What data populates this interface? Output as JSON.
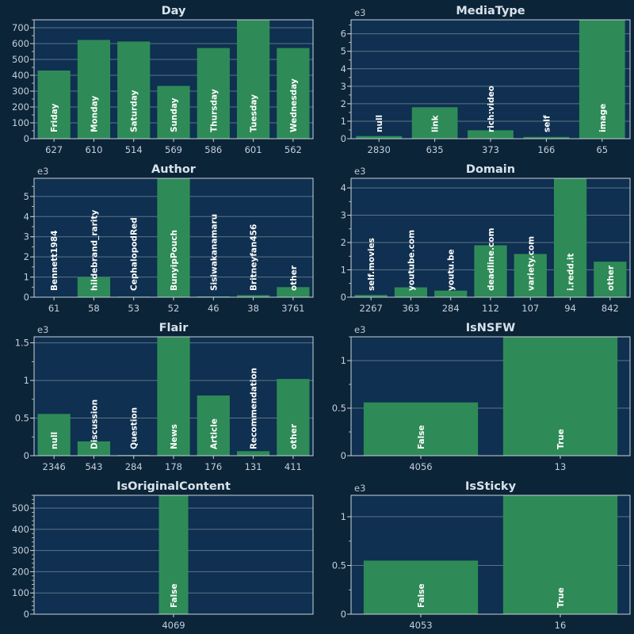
{
  "theme": {
    "page_bg": "#0c2438",
    "plot_bg": "#0f3050",
    "bar": "#2e8b57",
    "grid": "#5c7388",
    "axis": "#c9d4dd",
    "text": "#d8e2ea"
  },
  "chart_data": [
    {
      "type": "bar",
      "title": "Day",
      "exponent_label": "",
      "ylim": [
        0,
        750
      ],
      "yticks": [
        {
          "value": 0,
          "label": "0"
        },
        {
          "value": 100,
          "label": "100"
        },
        {
          "value": 200,
          "label": "200"
        },
        {
          "value": 300,
          "label": "300"
        },
        {
          "value": 400,
          "label": "400"
        },
        {
          "value": 500,
          "label": "500"
        },
        {
          "value": 600,
          "label": "600"
        },
        {
          "value": 700,
          "label": "700"
        }
      ],
      "minor_step": 50,
      "bar_labels": [
        "Friday",
        "Monday",
        "Saturday",
        "Sunday",
        "Thursday",
        "Tuesday",
        "Wednesday"
      ],
      "tick_labels": [
        "627",
        "610",
        "514",
        "569",
        "586",
        "601",
        "562"
      ],
      "values": [
        430,
        623,
        613,
        333,
        572,
        750,
        572
      ]
    },
    {
      "type": "bar",
      "title": "MediaType",
      "exponent_label": "e3",
      "ylim": [
        0,
        6800
      ],
      "yticks": [
        {
          "value": 0,
          "label": "0"
        },
        {
          "value": 1000,
          "label": "1"
        },
        {
          "value": 2000,
          "label": "2"
        },
        {
          "value": 3000,
          "label": "3"
        },
        {
          "value": 4000,
          "label": "4"
        },
        {
          "value": 5000,
          "label": "5"
        },
        {
          "value": 6000,
          "label": "6"
        }
      ],
      "minor_step": 500,
      "bar_labels": [
        "null",
        "link",
        "rich:video",
        "self",
        "image"
      ],
      "tick_labels": [
        "2830",
        "635",
        "373",
        "166",
        "65"
      ],
      "values": [
        150,
        1800,
        480,
        100,
        6800
      ]
    },
    {
      "type": "bar",
      "title": "Author",
      "exponent_label": "e3",
      "ylim": [
        0,
        5900
      ],
      "yticks": [
        {
          "value": 0,
          "label": "0"
        },
        {
          "value": 1000,
          "label": "1"
        },
        {
          "value": 2000,
          "label": "2"
        },
        {
          "value": 3000,
          "label": "3"
        },
        {
          "value": 4000,
          "label": "4"
        },
        {
          "value": 5000,
          "label": "5"
        }
      ],
      "minor_step": 500,
      "bar_labels": [
        "Bennett1984",
        "hildebrand_rarity",
        "CephalopodRed",
        "BunyipPouch",
        "Sisiwakanamaru",
        "Britneyfan456",
        "other"
      ],
      "tick_labels": [
        "61",
        "58",
        "53",
        "52",
        "46",
        "38",
        "3761"
      ],
      "values": [
        20,
        1000,
        30,
        5900,
        40,
        100,
        500
      ]
    },
    {
      "type": "bar",
      "title": "Domain",
      "exponent_label": "e3",
      "ylim": [
        0,
        4350
      ],
      "yticks": [
        {
          "value": 0,
          "label": "0"
        },
        {
          "value": 1000,
          "label": "1"
        },
        {
          "value": 2000,
          "label": "2"
        },
        {
          "value": 3000,
          "label": "3"
        },
        {
          "value": 4000,
          "label": "4"
        }
      ],
      "minor_step": 500,
      "bar_labels": [
        "self.movies",
        "youtube.com",
        "youtu.be",
        "deadline.com",
        "variety.com",
        "i.redd.it",
        "other"
      ],
      "tick_labels": [
        "2267",
        "363",
        "284",
        "112",
        "107",
        "94",
        "842"
      ],
      "values": [
        80,
        360,
        240,
        1900,
        1580,
        4350,
        1300
      ]
    },
    {
      "type": "bar",
      "title": "Flair",
      "exponent_label": "e3",
      "ylim": [
        0,
        1580
      ],
      "yticks": [
        {
          "value": 0,
          "label": "0"
        },
        {
          "value": 500,
          "label": "0.5"
        },
        {
          "value": 1000,
          "label": "1"
        },
        {
          "value": 1500,
          "label": "1.5"
        }
      ],
      "minor_step": 250,
      "bar_labels": [
        "null",
        "Discussion",
        "Question",
        "News",
        "Article",
        "Recommendation",
        "other"
      ],
      "tick_labels": [
        "2346",
        "543",
        "284",
        "178",
        "176",
        "131",
        "411"
      ],
      "values": [
        555,
        190,
        10,
        1580,
        800,
        60,
        1020
      ]
    },
    {
      "type": "bar",
      "title": "IsNSFW",
      "exponent_label": "e3",
      "ylim": [
        0,
        1250
      ],
      "yticks": [
        {
          "value": 0,
          "label": "0"
        },
        {
          "value": 500,
          "label": "0.5"
        },
        {
          "value": 1000,
          "label": "1"
        }
      ],
      "minor_step": 250,
      "bar_labels": [
        "False",
        "True"
      ],
      "tick_labels": [
        "4056",
        "13"
      ],
      "values": [
        560,
        1250
      ]
    },
    {
      "type": "bar",
      "title": "IsOriginalContent",
      "exponent_label": "",
      "ylim": [
        0,
        560
      ],
      "yticks": [
        {
          "value": 0,
          "label": "0"
        },
        {
          "value": 100,
          "label": "100"
        },
        {
          "value": 200,
          "label": "200"
        },
        {
          "value": 300,
          "label": "300"
        },
        {
          "value": 400,
          "label": "400"
        },
        {
          "value": 500,
          "label": "500"
        }
      ],
      "minor_step": 20,
      "bar_labels": [
        "False"
      ],
      "tick_labels": [
        "4069"
      ],
      "values": [
        560
      ]
    },
    {
      "type": "bar",
      "title": "IsSticky",
      "exponent_label": "e3",
      "ylim": [
        0,
        1220
      ],
      "yticks": [
        {
          "value": 0,
          "label": "0"
        },
        {
          "value": 500,
          "label": "0.5"
        },
        {
          "value": 1000,
          "label": "1"
        }
      ],
      "minor_step": 250,
      "bar_labels": [
        "False",
        "True"
      ],
      "tick_labels": [
        "4053",
        "16"
      ],
      "values": [
        550,
        1220
      ]
    }
  ]
}
